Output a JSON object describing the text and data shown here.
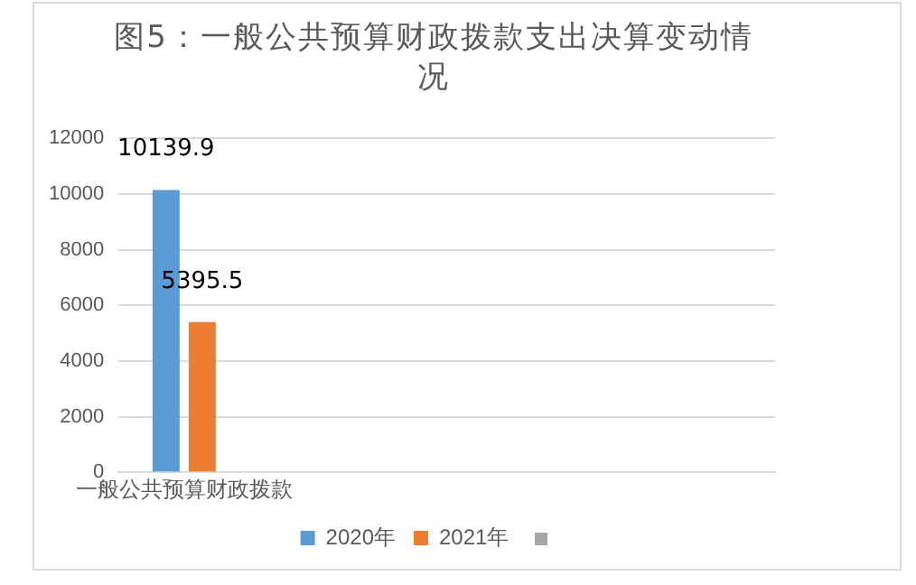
{
  "chart_data": {
    "type": "bar",
    "title": "图5：一般公共预算财政拨款支出决算变动情况",
    "categories": [
      "一般公共预算财政拨款",
      null,
      null,
      null,
      null
    ],
    "series": [
      {
        "name": "2020年",
        "color": "#5b9bd5",
        "values": [
          10139.9,
          null,
          null,
          null,
          null
        ]
      },
      {
        "name": "2021年",
        "color": "#ed7d31",
        "values": [
          5395.5,
          null,
          null,
          null,
          null
        ]
      }
    ],
    "ylim": [
      0,
      12000
    ],
    "yticks": [
      0,
      2000,
      4000,
      6000,
      8000,
      10000,
      12000
    ],
    "grid": "y",
    "legend": "bottom",
    "data_labels": true
  }
}
